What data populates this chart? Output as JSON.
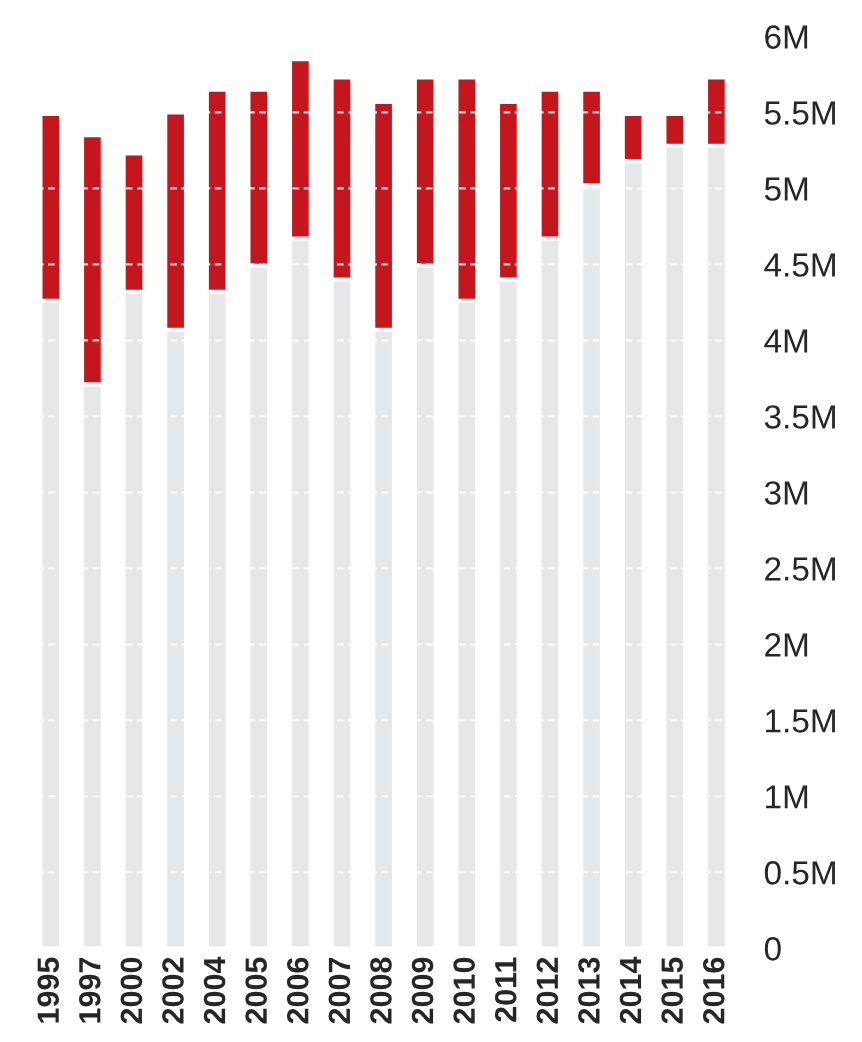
{
  "chart_data": {
    "type": "bar",
    "stacked": true,
    "categories": [
      "1995",
      "1997",
      "2000",
      "2002",
      "2004",
      "2005",
      "2006",
      "2007",
      "2008",
      "2009",
      "2010",
      "2011",
      "2012",
      "2013",
      "2014",
      "2015",
      "2016"
    ],
    "series": [
      {
        "color": "#e6e7e8",
        "values": [
          4.26,
          3.71,
          4.32,
          4.07,
          4.32,
          4.49,
          4.67,
          4.4,
          4.07,
          4.49,
          4.26,
          4.4,
          4.67,
          5.02,
          5.18,
          5.28,
          5.28
        ]
      },
      {
        "color": "#c4161c",
        "values": [
          1.23,
          1.64,
          0.91,
          1.43,
          1.33,
          1.16,
          1.18,
          1.33,
          1.5,
          1.24,
          1.47,
          1.17,
          0.98,
          0.63,
          0.31,
          0.21,
          0.45
        ]
      }
    ],
    "ylim": [
      0,
      6
    ],
    "yticks": [
      {
        "value": 0,
        "label": "0"
      },
      {
        "value": 0.5,
        "label": "0.5M"
      },
      {
        "value": 1,
        "label": "1M"
      },
      {
        "value": 1.5,
        "label": "1.5M"
      },
      {
        "value": 2,
        "label": "2M"
      },
      {
        "value": 2.5,
        "label": "2.5M"
      },
      {
        "value": 3,
        "label": "3M"
      },
      {
        "value": 3.5,
        "label": "3.5M"
      },
      {
        "value": 4,
        "label": "4M"
      },
      {
        "value": 4.5,
        "label": "4.5M"
      },
      {
        "value": 5,
        "label": "5M"
      },
      {
        "value": 5.5,
        "label": "5.5M"
      },
      {
        "value": 6,
        "label": "6M"
      }
    ],
    "grid": "y",
    "legend": false
  }
}
